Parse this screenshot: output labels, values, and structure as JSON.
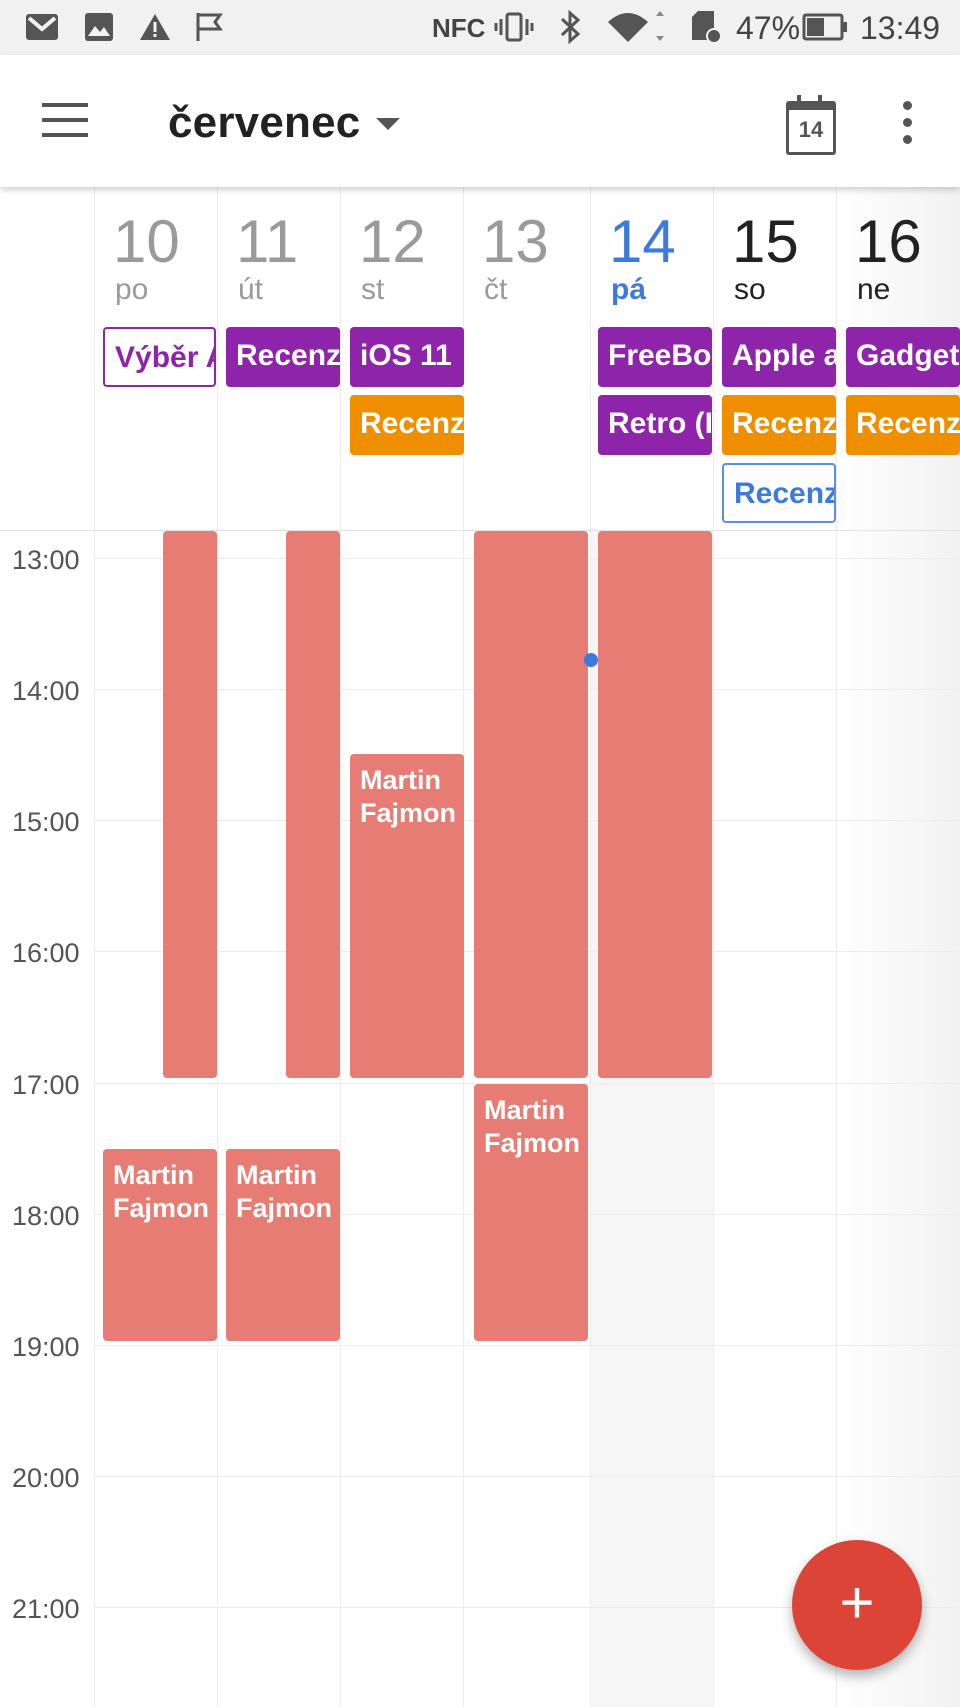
{
  "status_bar": {
    "battery": "47%",
    "time": "13:49",
    "nfc": "NFC",
    "icons": [
      "gmail-icon",
      "image-icon",
      "warning-icon",
      "flag-icon",
      "nfc-icon",
      "vibrate-icon",
      "bluetooth-icon",
      "wifi-icon",
      "sd-card-icon",
      "battery-icon"
    ]
  },
  "app_bar": {
    "title": "červenec",
    "today_badge": "14",
    "icons": [
      "menu-icon",
      "dropdown-caret-icon",
      "today-calendar-icon",
      "more-vert-icon"
    ]
  },
  "days": [
    {
      "num": "10",
      "name": "po"
    },
    {
      "num": "11",
      "name": "út"
    },
    {
      "num": "12",
      "name": "st"
    },
    {
      "num": "13",
      "name": "čt"
    },
    {
      "num": "14",
      "name": "pá"
    },
    {
      "num": "15",
      "name": "so"
    },
    {
      "num": "16",
      "name": "ne"
    }
  ],
  "all_day_events": [
    {
      "day": 0,
      "label": "Výběr A"
    },
    {
      "day": 1,
      "label": "Recenz"
    },
    {
      "day": 2,
      "label": "iOS 11"
    },
    {
      "day": 2,
      "label": "Recenz"
    },
    {
      "day": 4,
      "label": "FreeBox"
    },
    {
      "day": 4,
      "label": "Retro (I"
    },
    {
      "day": 5,
      "label": "Apple a"
    },
    {
      "day": 5,
      "label": "Recenz"
    },
    {
      "day": 5,
      "label": "Recenz"
    },
    {
      "day": 6,
      "label": "Gadget"
    },
    {
      "day": 6,
      "label": "Recenz"
    }
  ],
  "hours": [
    "13:00",
    "14:00",
    "15:00",
    "16:00",
    "17:00",
    "18:00",
    "19:00",
    "20:00",
    "21:00"
  ],
  "timed_events": [
    {
      "label_line1": "Martin",
      "label_line2": "Fajmon"
    },
    {
      "label_line1": "Martin",
      "label_line2": "Fajmon"
    },
    {
      "label_line1": "Martin",
      "label_line2": "Fajmon"
    },
    {
      "label_line1": "Martin",
      "label_line2": "Fajmon"
    }
  ],
  "fab": {
    "label": "+"
  },
  "colors": {
    "accent": "#3d7ae0",
    "event": "#e67c73",
    "purple": "#8e24aa",
    "orange": "#ef8f00",
    "fab": "#db4437"
  }
}
